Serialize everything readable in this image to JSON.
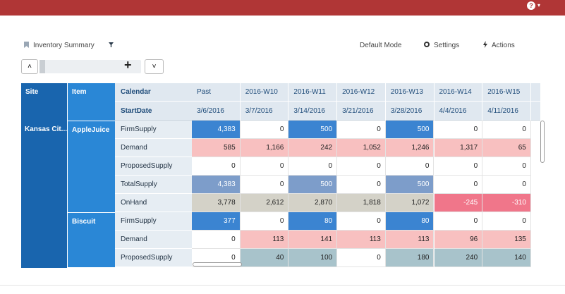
{
  "toolbar": {
    "title": "Inventory Summary",
    "mode": "Default Mode",
    "settings": "Settings",
    "actions": "Actions"
  },
  "table": {
    "site_header": "Site",
    "item_header": "Item",
    "calendar_label": "Calendar",
    "startdate_label": "StartDate",
    "columns": [
      {
        "name": "Past",
        "start": "3/6/2016"
      },
      {
        "name": "2016-W10",
        "start": "3/7/2016"
      },
      {
        "name": "2016-W11",
        "start": "3/14/2016"
      },
      {
        "name": "2016-W12",
        "start": "3/21/2016"
      },
      {
        "name": "2016-W13",
        "start": "3/28/2016"
      },
      {
        "name": "2016-W14",
        "start": "4/4/2016"
      },
      {
        "name": "2016-W15",
        "start": "4/11/2016"
      }
    ],
    "sites": [
      {
        "name": "Kansas Cit...",
        "items": [
          {
            "name": "AppleJuice",
            "rows": [
              {
                "measure": "FirmSupply",
                "values": [
                  "4,383",
                  "0",
                  "500",
                  "0",
                  "500",
                  "0",
                  "0"
                ]
              },
              {
                "measure": "Demand",
                "values": [
                  "585",
                  "1,166",
                  "242",
                  "1,052",
                  "1,246",
                  "1,317",
                  "65"
                ]
              },
              {
                "measure": "ProposedSupply",
                "values": [
                  "0",
                  "0",
                  "0",
                  "0",
                  "0",
                  "0",
                  "0"
                ]
              },
              {
                "measure": "TotalSupply",
                "values": [
                  "4,383",
                  "0",
                  "500",
                  "0",
                  "500",
                  "0",
                  "0"
                ]
              },
              {
                "measure": "OnHand",
                "values": [
                  "3,778",
                  "2,612",
                  "2,870",
                  "1,818",
                  "1,072",
                  "-245",
                  "-310"
                ]
              }
            ]
          },
          {
            "name": "Biscuit",
            "rows": [
              {
                "measure": "FirmSupply",
                "values": [
                  "377",
                  "0",
                  "80",
                  "0",
                  "80",
                  "0",
                  "0"
                ]
              },
              {
                "measure": "Demand",
                "values": [
                  "0",
                  "113",
                  "141",
                  "113",
                  "113",
                  "96",
                  "135"
                ]
              },
              {
                "measure": "ProposedSupply",
                "values": [
                  "0",
                  "40",
                  "100",
                  "0",
                  "180",
                  "240",
                  "140"
                ]
              }
            ]
          }
        ]
      }
    ]
  }
}
